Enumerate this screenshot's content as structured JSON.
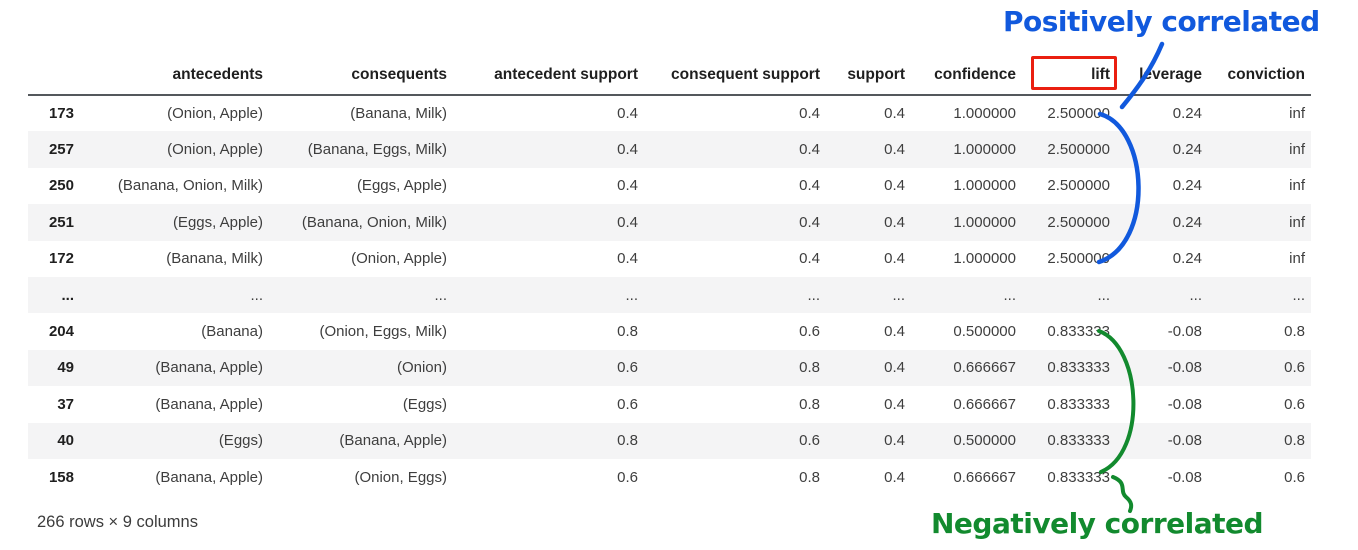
{
  "annotations": {
    "positive_label": "Positively correlated",
    "negative_label": "Negatively correlated",
    "positive_color": "#1159dd",
    "negative_color": "#128a2e",
    "highlight_box_color": "#ea1f10",
    "highlighted_column": "lift"
  },
  "table": {
    "columns": [
      "",
      "antecedents",
      "consequents",
      "antecedent support",
      "consequent support",
      "support",
      "confidence",
      "lift",
      "leverage",
      "conviction"
    ],
    "rows": [
      [
        "173",
        "(Onion, Apple)",
        "(Banana, Milk)",
        "0.4",
        "0.4",
        "0.4",
        "1.000000",
        "2.500000",
        "0.24",
        "inf"
      ],
      [
        "257",
        "(Onion, Apple)",
        "(Banana, Eggs, Milk)",
        "0.4",
        "0.4",
        "0.4",
        "1.000000",
        "2.500000",
        "0.24",
        "inf"
      ],
      [
        "250",
        "(Banana, Onion, Milk)",
        "(Eggs, Apple)",
        "0.4",
        "0.4",
        "0.4",
        "1.000000",
        "2.500000",
        "0.24",
        "inf"
      ],
      [
        "251",
        "(Eggs, Apple)",
        "(Banana, Onion, Milk)",
        "0.4",
        "0.4",
        "0.4",
        "1.000000",
        "2.500000",
        "0.24",
        "inf"
      ],
      [
        "172",
        "(Banana, Milk)",
        "(Onion, Apple)",
        "0.4",
        "0.4",
        "0.4",
        "1.000000",
        "2.500000",
        "0.24",
        "inf"
      ],
      [
        "...",
        "...",
        "...",
        "...",
        "...",
        "...",
        "...",
        "...",
        "...",
        "..."
      ],
      [
        "204",
        "(Banana)",
        "(Onion, Eggs, Milk)",
        "0.8",
        "0.6",
        "0.4",
        "0.500000",
        "0.833333",
        "-0.08",
        "0.8"
      ],
      [
        "49",
        "(Banana, Apple)",
        "(Onion)",
        "0.6",
        "0.8",
        "0.4",
        "0.666667",
        "0.833333",
        "-0.08",
        "0.6"
      ],
      [
        "37",
        "(Banana, Apple)",
        "(Eggs)",
        "0.6",
        "0.8",
        "0.4",
        "0.666667",
        "0.833333",
        "-0.08",
        "0.6"
      ],
      [
        "40",
        "(Eggs)",
        "(Banana, Apple)",
        "0.8",
        "0.6",
        "0.4",
        "0.500000",
        "0.833333",
        "-0.08",
        "0.8"
      ],
      [
        "158",
        "(Banana, Apple)",
        "(Onion, Eggs)",
        "0.6",
        "0.8",
        "0.4",
        "0.666667",
        "0.833333",
        "-0.08",
        "0.6"
      ]
    ]
  },
  "footer": {
    "summary": "266 rows × 9 columns"
  }
}
